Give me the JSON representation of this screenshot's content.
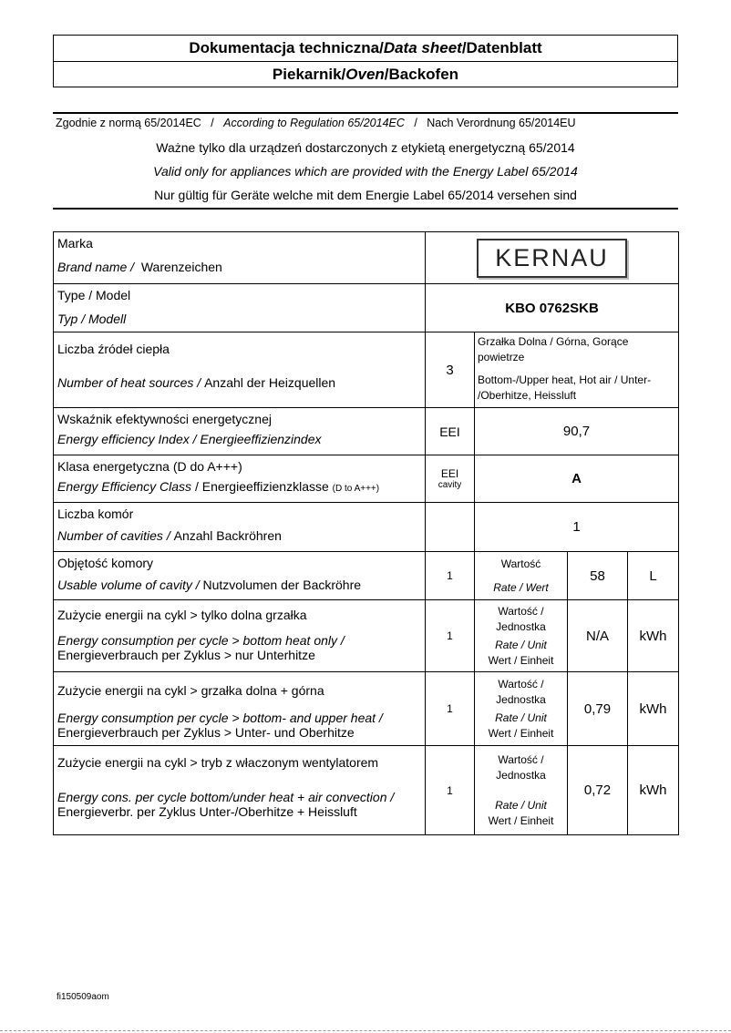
{
  "header": {
    "title": {
      "pl": "Dokumentacja techniczna",
      "sep1": " / ",
      "en": "Data sheet",
      "sep2": " / ",
      "de": "Datenblatt"
    },
    "subtitle": {
      "pl": "Piekarnik",
      "sep1": " / ",
      "en": "Oven",
      "sep2": " / ",
      "de": "Backofen"
    }
  },
  "notes": {
    "regulation": {
      "pl": "Zgodnie z normą 65/2014EC",
      "sep": "/",
      "en": "According to Regulation 65/2014EC",
      "de": "Nach Verordnung 65/2014EU"
    },
    "valid_pl": "Ważne tylko dla urządzeń dostarczonych z etykietą energetyczną 65/2014",
    "valid_en": "Valid only for appliances which are provided with the Energy Label 65/2014",
    "valid_de": "Nur gültig für Geräte welche mit dem Energie Label 65/2014 versehen sind"
  },
  "table": {
    "brand": {
      "pl": "Marka",
      "en": "Brand name /",
      "de": "Warenzeichen",
      "logo": "KERNAU"
    },
    "type": {
      "pl": "Type / Model",
      "en": "Typ / Modell",
      "value": "KBO 0762SKB"
    },
    "heat": {
      "pl": "Liczba źródeł ciepła",
      "en": "Number of heat sources /",
      "de": "Anzahl der Heizquellen",
      "count": "3",
      "desc_pl": "Grzałka Dolna / Górna, Gorące powietrze",
      "desc_en": "Bottom-/Upper heat, Hot air / Unter- /Oberhitze,  Heissluft"
    },
    "eei": {
      "pl": "Wskaźnik efektywności energetycznej",
      "en": "Energy efficiency Index / Energieeffizienzindex",
      "symbol": "EEI",
      "value": "90,7"
    },
    "class": {
      "pl": "Klasa energetyczna  (D do A+++)",
      "en": "Energy Efficiency Class",
      "de": "/ Energieeffizienzklasse",
      "de_small": "(D to A+++)",
      "symbol": "EEI",
      "symbol_sub": "cavity",
      "value": "A"
    },
    "cavities": {
      "pl": "Liczba komór",
      "en": "Number of cavities /",
      "de": "Anzahl Backröhren",
      "value": "1"
    },
    "volume": {
      "pl": "Objętość komory",
      "en": "Usable volume of cavity /",
      "de": "Nutzvolumen der Backröhre",
      "n": "1",
      "rate_pl": "Wartość",
      "rate_en": "Rate / Wert",
      "value": "58",
      "unit": "L"
    },
    "energy_rows": [
      {
        "pl": "Zużycie energii na cykl > tylko dolna grzałka",
        "en": "Energy consumption per cycle > bottom heat only /",
        "de": "Energieverbrauch per Zyklus > nur Unterhitze",
        "n": "1",
        "rate_pl": "Wartość / Jednostka",
        "rate_en": "Rate / Unit",
        "rate_de": "Wert / Einheit",
        "value": "N/A",
        "unit": "kWh"
      },
      {
        "pl": "Zużycie energii na cykl > grzałka dolna + górna",
        "en": "Energy consumption per cycle > bottom- and upper heat /",
        "de": "Energieverbrauch per Zyklus > Unter- und Oberhitze",
        "n": "1",
        "rate_pl": "Wartość / Jednostka",
        "rate_en": "Rate / Unit",
        "rate_de": "Wert / Einheit",
        "value": "0,79",
        "unit": "kWh"
      },
      {
        "pl": "Zużycie energii na cykl > tryb z właczonym wentylatorem",
        "en": "Energy cons. per cycle bottom/under heat + air convection /",
        "de": "Energieverbr. per Zyklus Unter-/Oberhitze + Heissluft",
        "n": "1",
        "rate_pl": "Wartość / Jednostka",
        "rate_en": "Rate / Unit",
        "rate_de": "Wert / Einheit",
        "value": "0,72",
        "unit": "kWh"
      }
    ]
  },
  "footer": {
    "code": "fi150509aom"
  }
}
